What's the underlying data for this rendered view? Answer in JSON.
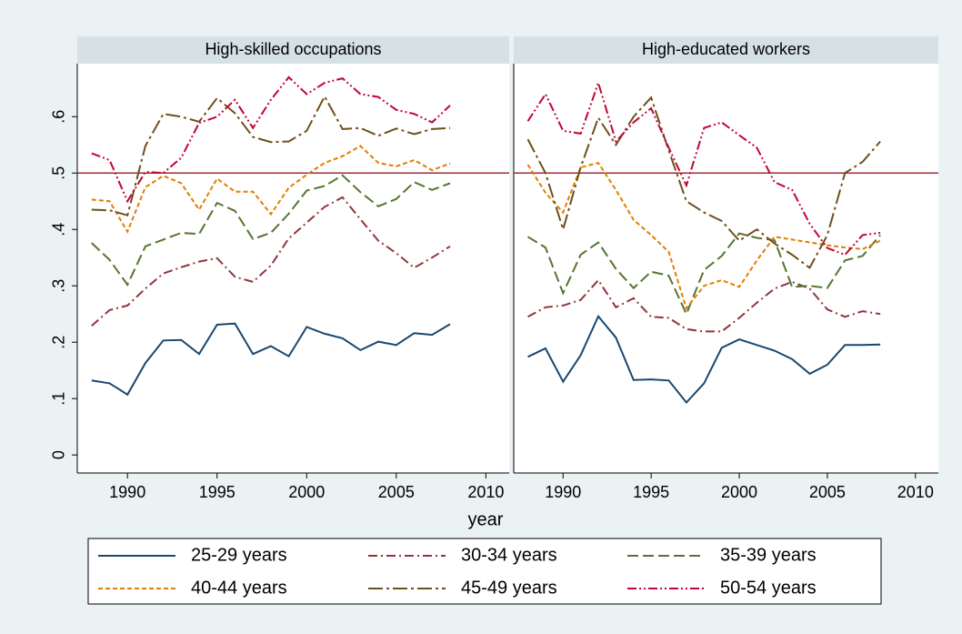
{
  "chart_data": [
    {
      "type": "line",
      "title": "High-skilled occupations",
      "xlabel": "year",
      "x": [
        1988,
        1989,
        1990,
        1991,
        1992,
        1993,
        1994,
        1995,
        1996,
        1997,
        1998,
        1999,
        2000,
        2001,
        2002,
        2003,
        2004,
        2005,
        2006,
        2007,
        2008
      ],
      "xlim": [
        1987.2,
        2011.3
      ],
      "xticks": [
        1990,
        1995,
        2000,
        2005,
        2010
      ],
      "ylim": [
        -0.032,
        0.694
      ],
      "yticks": [
        0,
        {
          "value": 0.1,
          "label": ".1"
        },
        {
          "value": 0.2,
          "label": ".2"
        },
        {
          "value": 0.3,
          "label": ".3"
        },
        {
          "value": 0.4,
          "label": ".4"
        },
        {
          "value": 0.5,
          "label": ".5"
        },
        {
          "value": 0.6,
          "label": ".6"
        }
      ],
      "hline": {
        "value": 0.5,
        "color": "#a52a3a"
      },
      "series": [
        {
          "name": "25-29 years",
          "color": "#1a476f",
          "dash": "none",
          "values": [
            0.132,
            0.127,
            0.107,
            0.163,
            0.203,
            0.204,
            0.179,
            0.231,
            0.233,
            0.179,
            0.193,
            0.175,
            0.227,
            0.215,
            0.207,
            0.186,
            0.201,
            0.195,
            0.216,
            0.213,
            0.232
          ]
        },
        {
          "name": "30-34 years",
          "color": "#90353b",
          "dash": "10,4,2,4",
          "values": [
            0.229,
            0.257,
            0.265,
            0.295,
            0.322,
            0.333,
            0.343,
            0.349,
            0.316,
            0.307,
            0.336,
            0.384,
            0.412,
            0.44,
            0.457,
            0.418,
            0.38,
            0.358,
            0.332,
            0.35,
            0.37
          ]
        },
        {
          "name": "35-39 years",
          "color": "#55752f",
          "dash": "12,5",
          "values": [
            0.376,
            0.346,
            0.302,
            0.37,
            0.382,
            0.394,
            0.392,
            0.447,
            0.433,
            0.383,
            0.394,
            0.428,
            0.469,
            0.477,
            0.496,
            0.466,
            0.441,
            0.454,
            0.484,
            0.47,
            0.482
          ]
        },
        {
          "name": "40-44 years",
          "color": "#e37e00",
          "dash": "5,3",
          "values": [
            0.453,
            0.45,
            0.396,
            0.475,
            0.495,
            0.482,
            0.435,
            0.49,
            0.467,
            0.467,
            0.427,
            0.474,
            0.497,
            0.518,
            0.53,
            0.548,
            0.518,
            0.512,
            0.523,
            0.505,
            0.517
          ]
        },
        {
          "name": "45-49 years",
          "color": "#6e4f1c",
          "dash": "16,4,3,4",
          "values": [
            0.435,
            0.434,
            0.425,
            0.548,
            0.605,
            0.6,
            0.591,
            0.633,
            0.606,
            0.564,
            0.555,
            0.556,
            0.575,
            0.636,
            0.578,
            0.58,
            0.566,
            0.579,
            0.569,
            0.578,
            0.58
          ]
        },
        {
          "name": "50-54 years",
          "color": "#c10534",
          "dash": "10,3,2,3,2,3",
          "values": [
            0.535,
            0.523,
            0.45,
            0.502,
            0.5,
            0.527,
            0.589,
            0.6,
            0.63,
            0.58,
            0.63,
            0.67,
            0.64,
            0.66,
            0.668,
            0.64,
            0.635,
            0.612,
            0.605,
            0.59,
            0.62
          ]
        }
      ]
    },
    {
      "type": "line",
      "title": "High-educated workers",
      "x": [
        1988,
        1989,
        1990,
        1991,
        1992,
        1993,
        1994,
        1995,
        1996,
        1997,
        1998,
        1999,
        2000,
        2001,
        2002,
        2003,
        2004,
        2005,
        2006,
        2007,
        2008
      ],
      "xlim": [
        1987.2,
        2011.3
      ],
      "xticks": [
        1990,
        1995,
        2000,
        2005,
        2010
      ],
      "ylim": [
        -0.032,
        0.694
      ],
      "hline": {
        "value": 0.5,
        "color": "#a52a3a"
      },
      "series": [
        {
          "name": "25-29 years",
          "color": "#1a476f",
          "dash": "none",
          "values": [
            0.174,
            0.189,
            0.13,
            0.177,
            0.246,
            0.208,
            0.133,
            0.134,
            0.132,
            0.093,
            0.127,
            0.19,
            0.205,
            0.195,
            0.185,
            0.17,
            0.144,
            0.16,
            0.195,
            0.195,
            0.196
          ]
        },
        {
          "name": "30-34 years",
          "color": "#90353b",
          "dash": "10,4,2,4",
          "values": [
            0.245,
            0.262,
            0.265,
            0.275,
            0.31,
            0.262,
            0.278,
            0.245,
            0.243,
            0.223,
            0.219,
            0.219,
            0.243,
            0.27,
            0.295,
            0.307,
            0.295,
            0.258,
            0.245,
            0.255,
            0.25
          ]
        },
        {
          "name": "35-39 years",
          "color": "#55752f",
          "dash": "12,5",
          "values": [
            0.387,
            0.368,
            0.287,
            0.355,
            0.377,
            0.33,
            0.296,
            0.325,
            0.318,
            0.25,
            0.328,
            0.353,
            0.393,
            0.385,
            0.381,
            0.298,
            0.3,
            0.296,
            0.345,
            0.353,
            0.39
          ]
        },
        {
          "name": "40-44 years",
          "color": "#e37e00",
          "dash": "5,3",
          "values": [
            0.515,
            0.465,
            0.43,
            0.51,
            0.518,
            0.47,
            0.417,
            0.39,
            0.36,
            0.26,
            0.3,
            0.31,
            0.298,
            0.345,
            0.387,
            0.382,
            0.377,
            0.372,
            0.368,
            0.365,
            0.38
          ]
        },
        {
          "name": "45-49 years",
          "color": "#6e4f1c",
          "dash": "16,4,3,4",
          "values": [
            0.56,
            0.5,
            0.4,
            0.51,
            0.598,
            0.55,
            0.6,
            0.634,
            0.54,
            0.45,
            0.43,
            0.415,
            0.38,
            0.4,
            0.375,
            0.355,
            0.332,
            0.39,
            0.5,
            0.52,
            0.556
          ]
        },
        {
          "name": "50-54 years",
          "color": "#c10534",
          "dash": "10,3,2,3,2,3",
          "values": [
            0.592,
            0.64,
            0.575,
            0.57,
            0.66,
            0.556,
            0.59,
            0.615,
            0.545,
            0.478,
            0.58,
            0.59,
            0.567,
            0.545,
            0.484,
            0.47,
            0.41,
            0.367,
            0.355,
            0.39,
            0.394
          ]
        }
      ]
    }
  ]
}
